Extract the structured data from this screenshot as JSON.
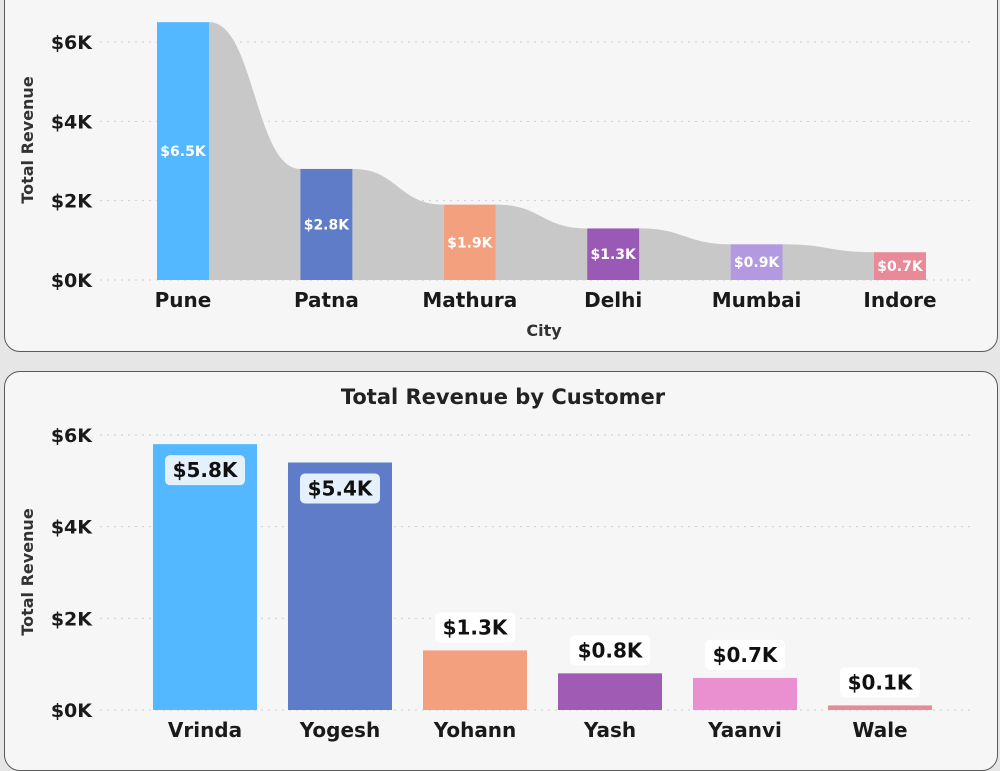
{
  "chart_data": [
    {
      "type": "bar",
      "title": "",
      "xlabel": "City",
      "ylabel": "Total Revenue",
      "ylim": [
        0,
        6500
      ],
      "y_ticks": [
        "$0K",
        "$2K",
        "$4K",
        "$6K"
      ],
      "y_tick_values": [
        0,
        2000,
        4000,
        6000
      ],
      "categories": [
        "Pune",
        "Patna",
        "Mathura",
        "Delhi",
        "Mumbai",
        "Indore"
      ],
      "values": [
        6500,
        2800,
        1900,
        1300,
        900,
        700
      ],
      "data_labels": [
        "$6.5K",
        "$2.8K",
        "$1.9K",
        "$1.3K",
        "$0.9K",
        "$0.7K"
      ],
      "colors": [
        "#53b8ff",
        "#5f7cc8",
        "#f2a07e",
        "#9b59b6",
        "#b39ae0",
        "#e88a97"
      ],
      "ribbon_color": "#c8c8c8",
      "grid": true
    },
    {
      "type": "bar",
      "title": "Total Revenue by Customer",
      "xlabel": "",
      "ylabel": "Total Revenue",
      "ylim": [
        0,
        6000
      ],
      "y_ticks": [
        "$0K",
        "$2K",
        "$4K",
        "$6K"
      ],
      "y_tick_values": [
        0,
        2000,
        4000,
        6000
      ],
      "categories": [
        "Vrinda",
        "Yogesh",
        "Yohann",
        "Yash",
        "Yaanvi",
        "Wale"
      ],
      "values": [
        5800,
        5400,
        1300,
        800,
        700,
        100
      ],
      "data_labels": [
        "$5.8K",
        "$5.4K",
        "$1.3K",
        "$0.8K",
        "$0.7K",
        "$0.1K"
      ],
      "colors": [
        "#53b8ff",
        "#5f7cc8",
        "#f2a07e",
        "#a05cb4",
        "#ea8fcf",
        "#e88a97"
      ],
      "grid": true
    }
  ]
}
